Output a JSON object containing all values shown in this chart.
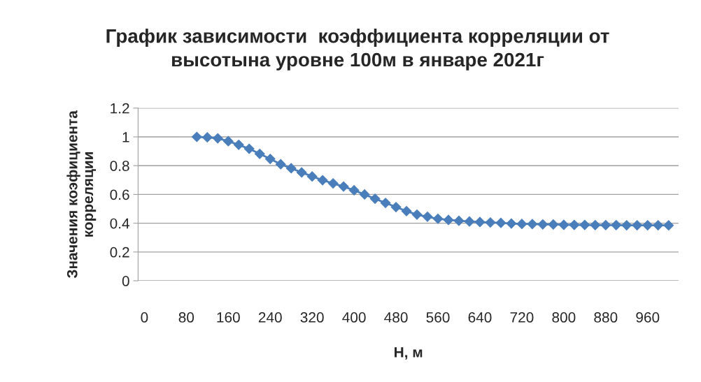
{
  "chart_data": {
    "type": "line",
    "title": "График зависимости  коэффициента корреляции от\nвысотына уровне 100м в январе 2021г",
    "xlabel": "H, м",
    "ylabel": "Значения коэфициента\nкорреляции",
    "x": [
      100,
      120,
      140,
      160,
      180,
      200,
      220,
      240,
      260,
      280,
      300,
      320,
      340,
      360,
      380,
      400,
      420,
      440,
      460,
      480,
      500,
      520,
      540,
      560,
      580,
      600,
      620,
      640,
      660,
      680,
      700,
      720,
      740,
      760,
      780,
      800,
      820,
      840,
      860,
      880,
      900,
      920,
      940,
      960,
      980,
      1000
    ],
    "series": [
      {
        "color": "#4a7ebb",
        "values": [
          1.0,
          0.997,
          0.99,
          0.97,
          0.945,
          0.917,
          0.882,
          0.847,
          0.81,
          0.782,
          0.753,
          0.725,
          0.699,
          0.677,
          0.655,
          0.629,
          0.6,
          0.57,
          0.541,
          0.512,
          0.484,
          0.46,
          0.445,
          0.431,
          0.423,
          0.417,
          0.412,
          0.408,
          0.405,
          0.402,
          0.398,
          0.395,
          0.394,
          0.392,
          0.391,
          0.389,
          0.388,
          0.388,
          0.387,
          0.387,
          0.387,
          0.386,
          0.386,
          0.386,
          0.386,
          0.385
        ]
      }
    ],
    "xlim": [
      -12,
      1019
    ],
    "xticks": [
      0,
      80,
      160,
      240,
      320,
      400,
      480,
      560,
      640,
      720,
      800,
      880,
      960
    ],
    "ylim": [
      0,
      1.2
    ],
    "yticks": [
      0,
      0.2,
      0.4,
      0.6,
      0.8,
      1,
      1.2
    ],
    "grid": "y",
    "marker": "diamond",
    "line_style": "solid"
  }
}
